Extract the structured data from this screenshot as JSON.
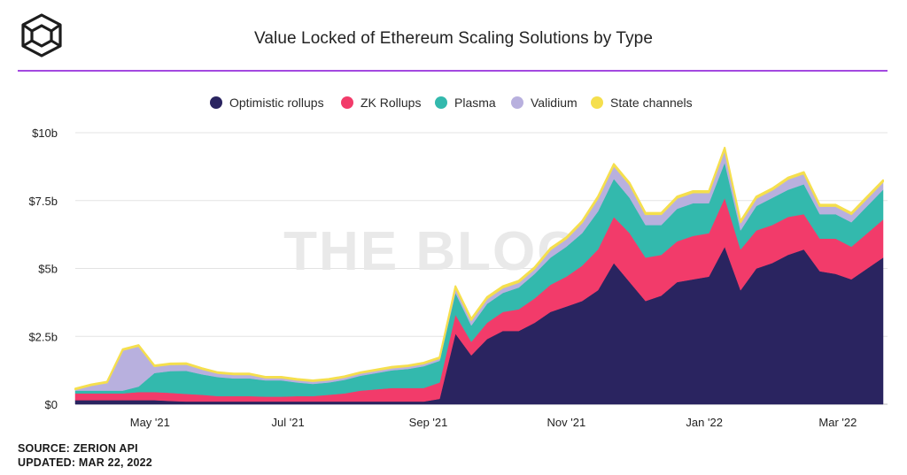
{
  "header": {
    "title": "Value Locked of Ethereum Scaling Solutions by Type",
    "logo_icon": "cube-logo-icon",
    "accent": "#a349e0"
  },
  "watermark": "THE BLOCK",
  "footer": {
    "source": "SOURCE: ZERION API",
    "updated": "UPDATED: MAR 22, 2022"
  },
  "chart_data": {
    "type": "area",
    "stacked": true,
    "title": "Value Locked of Ethereum Scaling Solutions by Type",
    "y_unit": "billion USD",
    "ylim": [
      0,
      10
    ],
    "y_ticks": [
      0,
      2.5,
      5,
      7.5,
      10
    ],
    "y_tick_labels": [
      "$0",
      "$2.5b",
      "$5b",
      "$7.5b",
      "$10b"
    ],
    "x_ticks": [
      "2021-05-01",
      "2021-07-01",
      "2021-09-01",
      "2021-11-01",
      "2022-01-01",
      "2022-03-01"
    ],
    "x_tick_labels": [
      "May '21",
      "Jul '21",
      "Sep '21",
      "Nov '21",
      "Jan '22",
      "Mar '22"
    ],
    "grid": "horizontal",
    "legend_position": "top-center",
    "x": [
      "2021-03-29",
      "2021-04-05",
      "2021-04-12",
      "2021-04-19",
      "2021-04-26",
      "2021-05-03",
      "2021-05-10",
      "2021-05-17",
      "2021-05-24",
      "2021-05-31",
      "2021-06-07",
      "2021-06-14",
      "2021-06-21",
      "2021-06-28",
      "2021-07-05",
      "2021-07-12",
      "2021-07-19",
      "2021-07-26",
      "2021-08-02",
      "2021-08-09",
      "2021-08-16",
      "2021-08-23",
      "2021-08-30",
      "2021-09-06",
      "2021-09-13",
      "2021-09-20",
      "2021-09-27",
      "2021-10-04",
      "2021-10-11",
      "2021-10-18",
      "2021-10-25",
      "2021-11-01",
      "2021-11-08",
      "2021-11-15",
      "2021-11-22",
      "2021-11-29",
      "2021-12-06",
      "2021-12-13",
      "2021-12-20",
      "2021-12-27",
      "2022-01-03",
      "2022-01-10",
      "2022-01-17",
      "2022-01-24",
      "2022-01-31",
      "2022-02-07",
      "2022-02-14",
      "2022-02-21",
      "2022-02-28",
      "2022-03-07",
      "2022-03-14",
      "2022-03-21"
    ],
    "series": [
      {
        "name": "Optimistic rollups",
        "color": "#2a2460",
        "values": [
          0.15,
          0.15,
          0.15,
          0.15,
          0.15,
          0.15,
          0.12,
          0.1,
          0.1,
          0.1,
          0.1,
          0.1,
          0.1,
          0.1,
          0.1,
          0.1,
          0.1,
          0.1,
          0.1,
          0.1,
          0.1,
          0.1,
          0.1,
          0.2,
          2.6,
          1.8,
          2.4,
          2.7,
          2.7,
          3.0,
          3.4,
          3.6,
          3.8,
          4.2,
          5.2,
          4.5,
          3.8,
          4.0,
          4.5,
          4.6,
          4.7,
          5.8,
          4.2,
          5.0,
          5.2,
          5.5,
          5.7,
          4.9,
          4.8,
          4.6,
          5.0,
          5.4
        ]
      },
      {
        "name": "ZK Rollups",
        "color": "#f23b6a",
        "values": [
          0.25,
          0.25,
          0.25,
          0.25,
          0.3,
          0.3,
          0.3,
          0.28,
          0.25,
          0.2,
          0.2,
          0.2,
          0.18,
          0.18,
          0.2,
          0.2,
          0.25,
          0.3,
          0.4,
          0.45,
          0.5,
          0.5,
          0.5,
          0.6,
          0.7,
          0.5,
          0.6,
          0.7,
          0.8,
          0.9,
          1.0,
          1.1,
          1.3,
          1.5,
          1.7,
          1.8,
          1.6,
          1.5,
          1.5,
          1.6,
          1.6,
          1.8,
          1.5,
          1.4,
          1.4,
          1.4,
          1.3,
          1.2,
          1.3,
          1.2,
          1.3,
          1.4
        ]
      },
      {
        "name": "Plasma",
        "color": "#33b9ad",
        "values": [
          0.1,
          0.1,
          0.1,
          0.1,
          0.2,
          0.7,
          0.8,
          0.85,
          0.75,
          0.7,
          0.65,
          0.65,
          0.6,
          0.6,
          0.5,
          0.45,
          0.45,
          0.5,
          0.55,
          0.6,
          0.65,
          0.7,
          0.8,
          0.8,
          0.8,
          0.6,
          0.7,
          0.7,
          0.8,
          0.9,
          1.0,
          1.1,
          1.2,
          1.4,
          1.4,
          1.3,
          1.2,
          1.1,
          1.2,
          1.2,
          1.1,
          1.3,
          0.7,
          0.9,
          1.0,
          1.0,
          1.1,
          0.9,
          0.9,
          0.9,
          1.0,
          1.1
        ]
      },
      {
        "name": "Validium",
        "color": "#b8b0de",
        "values": [
          0.05,
          0.2,
          0.3,
          1.5,
          1.5,
          0.25,
          0.25,
          0.25,
          0.2,
          0.15,
          0.15,
          0.15,
          0.1,
          0.1,
          0.1,
          0.1,
          0.1,
          0.1,
          0.1,
          0.1,
          0.1,
          0.1,
          0.1,
          0.1,
          0.2,
          0.2,
          0.2,
          0.2,
          0.2,
          0.2,
          0.3,
          0.3,
          0.4,
          0.5,
          0.5,
          0.5,
          0.4,
          0.4,
          0.4,
          0.4,
          0.4,
          0.5,
          0.3,
          0.3,
          0.3,
          0.4,
          0.4,
          0.3,
          0.3,
          0.3,
          0.3,
          0.3
        ]
      },
      {
        "name": "State channels",
        "color": "#f5df4d",
        "values": [
          0.03,
          0.03,
          0.03,
          0.03,
          0.03,
          0.03,
          0.03,
          0.03,
          0.03,
          0.03,
          0.03,
          0.03,
          0.03,
          0.03,
          0.03,
          0.03,
          0.03,
          0.03,
          0.03,
          0.03,
          0.03,
          0.03,
          0.03,
          0.03,
          0.05,
          0.05,
          0.05,
          0.05,
          0.05,
          0.05,
          0.05,
          0.05,
          0.05,
          0.05,
          0.05,
          0.05,
          0.05,
          0.05,
          0.05,
          0.05,
          0.05,
          0.05,
          0.05,
          0.05,
          0.05,
          0.05,
          0.05,
          0.05,
          0.05,
          0.05,
          0.05,
          0.05
        ]
      }
    ]
  }
}
